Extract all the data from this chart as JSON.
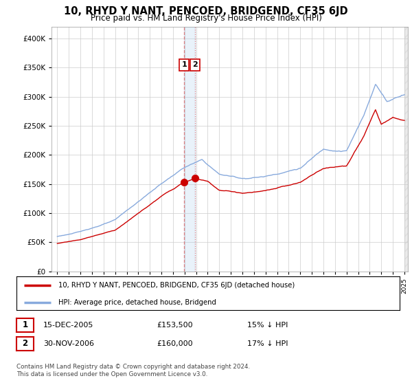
{
  "title": "10, RHYD Y NANT, PENCOED, BRIDGEND, CF35 6JD",
  "subtitle": "Price paid vs. HM Land Registry's House Price Index (HPI)",
  "ylim": [
    0,
    420000
  ],
  "yticks": [
    0,
    50000,
    100000,
    150000,
    200000,
    250000,
    300000,
    350000,
    400000
  ],
  "sale1_date": 2005.96,
  "sale1_price": 153500,
  "sale1_label": "1",
  "sale2_date": 2006.92,
  "sale2_price": 160000,
  "sale2_label": "2",
  "legend_property": "10, RHYD Y NANT, PENCOED, BRIDGEND, CF35 6JD (detached house)",
  "legend_hpi": "HPI: Average price, detached house, Bridgend",
  "table_row1": [
    "1",
    "15-DEC-2005",
    "£153,500",
    "15% ↓ HPI"
  ],
  "table_row2": [
    "2",
    "30-NOV-2006",
    "£160,000",
    "17% ↓ HPI"
  ],
  "footer": "Contains HM Land Registry data © Crown copyright and database right 2024.\nThis data is licensed under the Open Government Licence v3.0.",
  "property_color": "#cc0000",
  "hpi_color": "#88aadd",
  "vline_color": "#dd6666",
  "box_color": "#cc0000",
  "grid_color": "#cccccc",
  "background_color": "#ffffff"
}
